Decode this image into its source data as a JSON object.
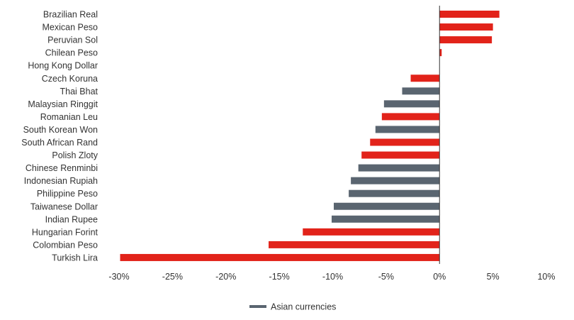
{
  "chart_data": {
    "type": "bar",
    "orientation": "horizontal",
    "title": "",
    "xlabel": "",
    "ylabel": "",
    "categories": [
      "Brazilian Real",
      "Mexican Peso",
      "Peruvian Sol",
      "Chilean Peso",
      "Hong Kong Dollar",
      "Czech Koruna",
      "Thai Bhat",
      "Malaysian Ringgit",
      "Romanian Leu",
      "South Korean Won",
      "South African Rand",
      "Polish Zloty",
      "Chinese Renminbi",
      "Indonesian Rupiah",
      "Philippine Peso",
      "Taiwanese Dollar",
      "Indian Rupee",
      "Hungarian Forint",
      "Colombian Peso",
      "Turkish Lira"
    ],
    "values": [
      5.6,
      5.0,
      4.9,
      0.2,
      0.0,
      -2.7,
      -3.5,
      -5.2,
      -5.4,
      -6.0,
      -6.5,
      -7.3,
      -7.6,
      -8.3,
      -8.5,
      -9.9,
      -10.1,
      -12.8,
      -16.0,
      -29.9
    ],
    "asian": [
      false,
      false,
      false,
      false,
      true,
      false,
      true,
      true,
      false,
      true,
      false,
      false,
      true,
      true,
      true,
      true,
      true,
      false,
      false,
      false
    ],
    "xlim": [
      -30,
      10
    ],
    "xticks": [
      -30,
      -25,
      -20,
      -15,
      -10,
      -5,
      0,
      5,
      10
    ],
    "xtick_labels": [
      "-30%",
      "-25%",
      "-20%",
      "-15%",
      "-10%",
      "-5%",
      "0%",
      "5%",
      "10%"
    ],
    "grid": false,
    "legend_position": "bottom-center",
    "legend": [
      {
        "name": "Asian currencies",
        "color": "#5a6570"
      }
    ],
    "colors": {
      "default": "#e2231a",
      "asian": "#5a6570",
      "axis": "#333333"
    }
  }
}
